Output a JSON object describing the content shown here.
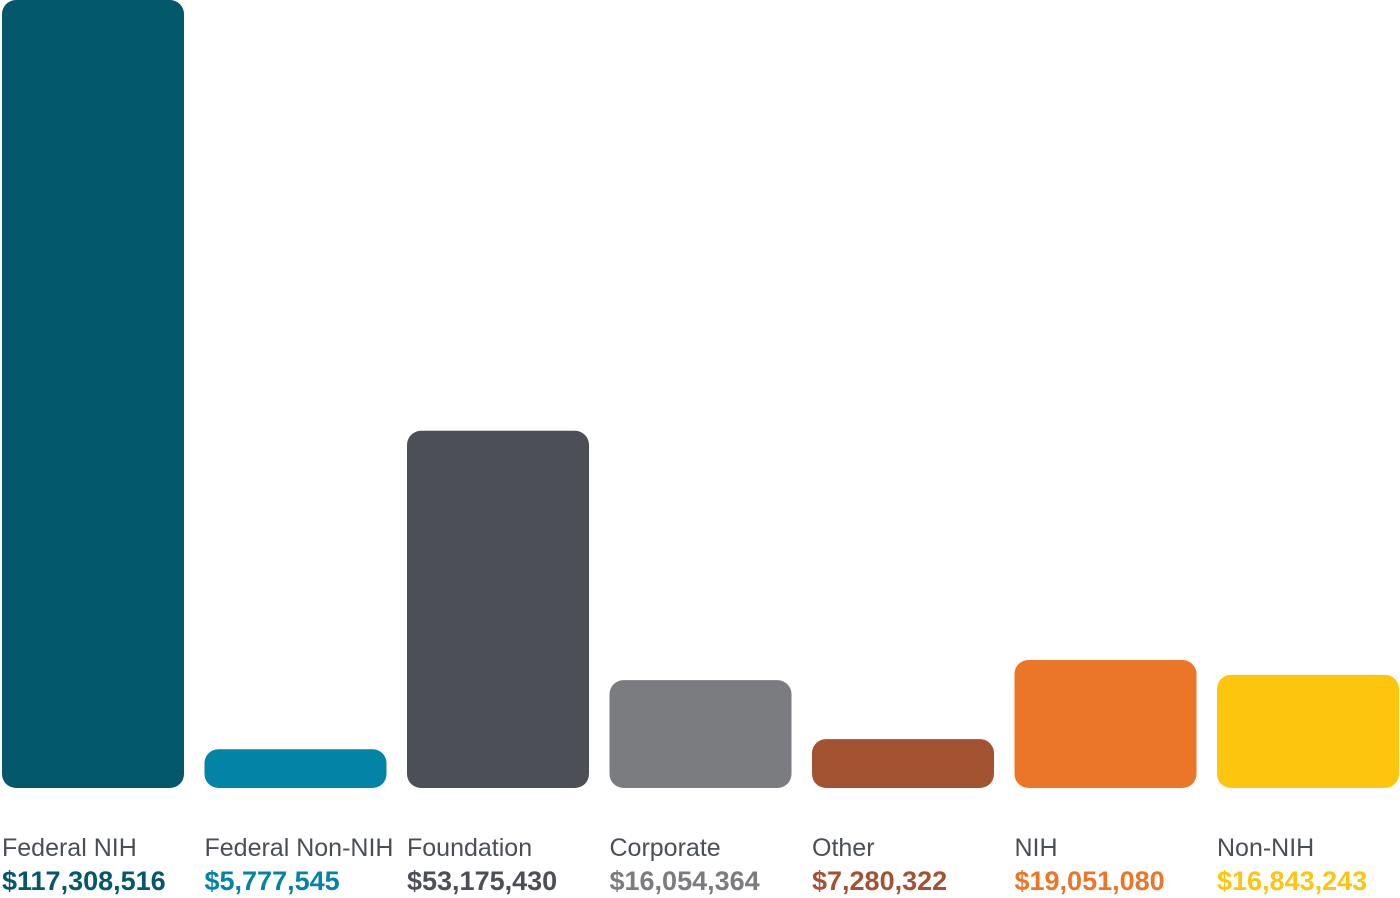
{
  "chart_data": {
    "type": "bar",
    "categories": [
      "Federal NIH",
      "Federal Non-NIH",
      "Foundation",
      "Corporate",
      "Other",
      "NIH",
      "Non-NIH"
    ],
    "values": [
      117308516,
      5777545,
      53175430,
      16054364,
      7280322,
      19051080,
      16843243
    ],
    "value_labels": [
      "$117,308,516",
      "$5,777,545",
      "$53,175,430",
      "$16,054,364",
      "$7,280,322",
      "$19,051,080",
      "$16,843,243"
    ],
    "colors": [
      "#03586b",
      "#0383a6",
      "#4c4f56",
      "#7a7c80",
      "#a35232",
      "#ec7628",
      "#fdc50d"
    ],
    "ylim": [
      0,
      117308516
    ],
    "grid": false,
    "legend": "none"
  }
}
